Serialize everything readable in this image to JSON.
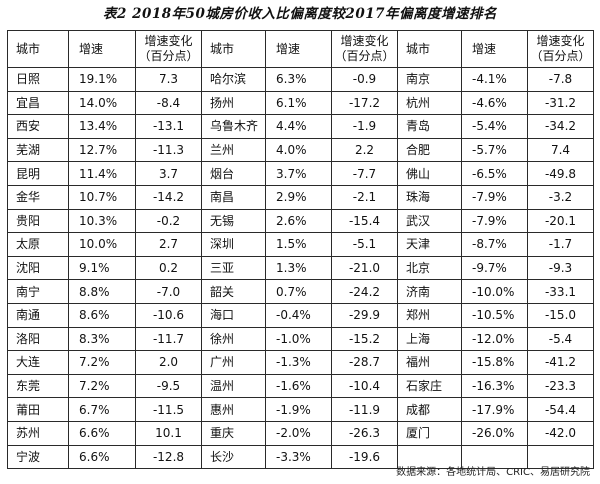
{
  "title": "表2  2018年50城房价收入比偏离度较2017年偏离度增速排名",
  "headers": {
    "city": "城市",
    "growth": "增速",
    "change_line1": "增速变化",
    "change_line2": "（百分点）"
  },
  "groups": [
    [
      {
        "city": "日照",
        "growth": "19.1%",
        "change": "7.3"
      },
      {
        "city": "宜昌",
        "growth": "14.0%",
        "change": "-8.4"
      },
      {
        "city": "西安",
        "growth": "13.4%",
        "change": "-13.1"
      },
      {
        "city": "芜湖",
        "growth": "12.7%",
        "change": "-11.3"
      },
      {
        "city": "昆明",
        "growth": "11.4%",
        "change": "3.7"
      },
      {
        "city": "金华",
        "growth": "10.7%",
        "change": "-14.2"
      },
      {
        "city": "贵阳",
        "growth": "10.3%",
        "change": "-0.2"
      },
      {
        "city": "太原",
        "growth": "10.0%",
        "change": "2.7"
      },
      {
        "city": "沈阳",
        "growth": "9.1%",
        "change": "0.2"
      },
      {
        "city": "南宁",
        "growth": "8.8%",
        "change": "-7.0"
      },
      {
        "city": "南通",
        "growth": "8.6%",
        "change": "-10.6"
      },
      {
        "city": "洛阳",
        "growth": "8.3%",
        "change": "-11.7"
      },
      {
        "city": "大连",
        "growth": "7.2%",
        "change": "2.0"
      },
      {
        "city": "东莞",
        "growth": "7.2%",
        "change": "-9.5"
      },
      {
        "city": "莆田",
        "growth": "6.7%",
        "change": "-11.5"
      },
      {
        "city": "苏州",
        "growth": "6.6%",
        "change": "10.1"
      },
      {
        "city": "宁波",
        "growth": "6.6%",
        "change": "-12.8"
      }
    ],
    [
      {
        "city": "哈尔滨",
        "growth": "6.3%",
        "change": "-0.9"
      },
      {
        "city": "扬州",
        "growth": "6.1%",
        "change": "-17.2"
      },
      {
        "city": "乌鲁木齐",
        "growth": "4.4%",
        "change": "-1.9"
      },
      {
        "city": "兰州",
        "growth": "4.0%",
        "change": "2.2"
      },
      {
        "city": "烟台",
        "growth": "3.7%",
        "change": "-7.7"
      },
      {
        "city": "南昌",
        "growth": "2.9%",
        "change": "-2.1"
      },
      {
        "city": "无锡",
        "growth": "2.6%",
        "change": "-15.4"
      },
      {
        "city": "深圳",
        "growth": "1.5%",
        "change": "-5.1"
      },
      {
        "city": "三亚",
        "growth": "1.3%",
        "change": "-21.0"
      },
      {
        "city": "韶关",
        "growth": "0.7%",
        "change": "-24.2"
      },
      {
        "city": "海口",
        "growth": "-0.4%",
        "change": "-29.9"
      },
      {
        "city": "徐州",
        "growth": "-1.0%",
        "change": "-15.2"
      },
      {
        "city": "广州",
        "growth": "-1.3%",
        "change": "-28.7"
      },
      {
        "city": "温州",
        "growth": "-1.6%",
        "change": "-10.4"
      },
      {
        "city": "惠州",
        "growth": "-1.9%",
        "change": "-11.9"
      },
      {
        "city": "重庆",
        "growth": "-2.0%",
        "change": "-26.3"
      },
      {
        "city": "长沙",
        "growth": "-3.3%",
        "change": "-19.6"
      }
    ],
    [
      {
        "city": "南京",
        "growth": "-4.1%",
        "change": "-7.8"
      },
      {
        "city": "杭州",
        "growth": "-4.6%",
        "change": "-31.2"
      },
      {
        "city": "青岛",
        "growth": "-5.4%",
        "change": "-34.2"
      },
      {
        "city": "合肥",
        "growth": "-5.7%",
        "change": "7.4"
      },
      {
        "city": "佛山",
        "growth": "-6.5%",
        "change": "-49.8"
      },
      {
        "city": "珠海",
        "growth": "-7.9%",
        "change": "-3.2"
      },
      {
        "city": "武汉",
        "growth": "-7.9%",
        "change": "-20.1"
      },
      {
        "city": "天津",
        "growth": "-8.7%",
        "change": "-1.7"
      },
      {
        "city": "北京",
        "growth": "-9.7%",
        "change": "-9.3"
      },
      {
        "city": "济南",
        "growth": "-10.0%",
        "change": "-33.1"
      },
      {
        "city": "郑州",
        "growth": "-10.5%",
        "change": "-15.0"
      },
      {
        "city": "上海",
        "growth": "-12.0%",
        "change": "-5.4"
      },
      {
        "city": "福州",
        "growth": "-15.8%",
        "change": "-41.2"
      },
      {
        "city": "石家庄",
        "growth": "-16.3%",
        "change": "-23.3"
      },
      {
        "city": "成都",
        "growth": "-17.9%",
        "change": "-54.4"
      },
      {
        "city": "厦门",
        "growth": "-26.0%",
        "change": "-42.0"
      },
      {
        "city": "",
        "growth": "",
        "change": ""
      }
    ]
  ],
  "source": "数据来源：各地统计局、CRIC、易居研究院"
}
